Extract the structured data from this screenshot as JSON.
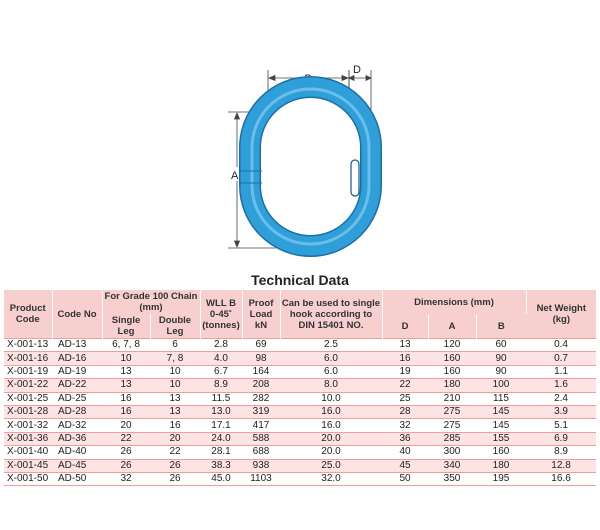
{
  "diagram": {
    "label_b": "B",
    "label_d": "D",
    "label_a": "A",
    "link_color": "#2e9fd8",
    "link_edge_color": "#1d6fa6"
  },
  "title": "Technical Data",
  "headers": {
    "product_code": "Product Code",
    "code_no": "Code No",
    "grade": "For Grade 100 Chain (mm)",
    "single_leg": "Single Leg",
    "double_leg": "Double Leg",
    "wll": "WLL B 0-45˚ (tonnes)",
    "proof": "Proof Load kN",
    "hook": "Can be used to single hook according to DIN 15401 NO.",
    "dimensions": "Dimensions (mm)",
    "dim_d": "D",
    "dim_a": "A",
    "dim_b": "B",
    "net_weight": "Net Weight (kg)"
  },
  "rows": [
    [
      "X-001-13",
      "AD-13",
      "6, 7, 8",
      "6",
      "2.8",
      "69",
      "2.5",
      "13",
      "120",
      "60",
      "0.4"
    ],
    [
      "X-001-16",
      "AD-16",
      "10",
      "7, 8",
      "4.0",
      "98",
      "6.0",
      "16",
      "160",
      "90",
      "0.7"
    ],
    [
      "X-001-19",
      "AD-19",
      "13",
      "10",
      "6.7",
      "164",
      "6.0",
      "19",
      "160",
      "90",
      "1.1"
    ],
    [
      "X-001-22",
      "AD-22",
      "13",
      "10",
      "8.9",
      "208",
      "8.0",
      "22",
      "180",
      "100",
      "1.6"
    ],
    [
      "X-001-25",
      "AD-25",
      "16",
      "13",
      "11.5",
      "282",
      "10.0",
      "25",
      "210",
      "115",
      "2.4"
    ],
    [
      "X-001-28",
      "AD-28",
      "16",
      "13",
      "13.0",
      "319",
      "16.0",
      "28",
      "275",
      "145",
      "3.9"
    ],
    [
      "X-001-32",
      "AD-32",
      "20",
      "16",
      "17.1",
      "417",
      "16.0",
      "32",
      "275",
      "145",
      "5.1"
    ],
    [
      "X-001-36",
      "AD-36",
      "22",
      "20",
      "24.0",
      "588",
      "20.0",
      "36",
      "285",
      "155",
      "6.9"
    ],
    [
      "X-001-40",
      "AD-40",
      "26",
      "22",
      "28.1",
      "688",
      "20.0",
      "40",
      "300",
      "160",
      "8.9"
    ],
    [
      "X-001-45",
      "AD-45",
      "26",
      "26",
      "38.3",
      "938",
      "25.0",
      "45",
      "340",
      "180",
      "12.8"
    ],
    [
      "X-001-50",
      "AD-50",
      "32",
      "26",
      "45.0",
      "1103",
      "32.0",
      "50",
      "350",
      "195",
      "16.6"
    ]
  ],
  "row_colors": [
    "#ffffff",
    "#fde3e3"
  ]
}
